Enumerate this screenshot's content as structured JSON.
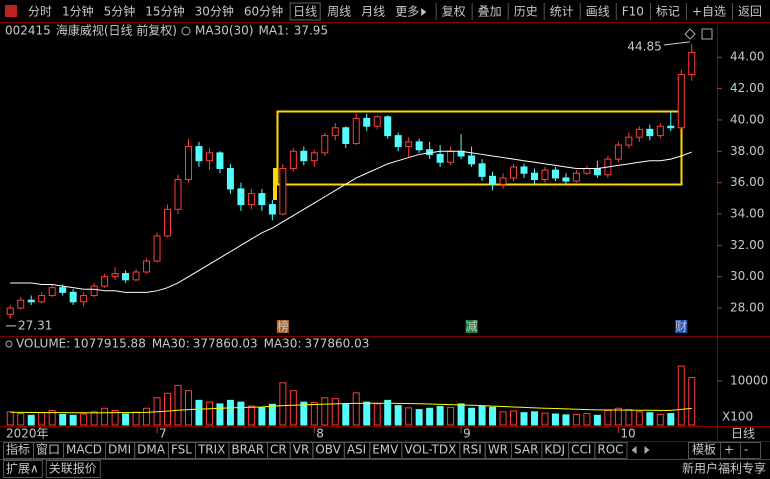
{
  "toolbar": {
    "left": [
      "分时",
      "1分钟",
      "5分钟",
      "15分钟",
      "30分钟",
      "60分钟",
      "日线",
      "周线",
      "月线",
      "更多"
    ],
    "right": [
      "复权",
      "叠加",
      "历史",
      "统计",
      "画线",
      "F10",
      "标记",
      "+自选",
      "返回"
    ]
  },
  "chart_data": {
    "type": "candlestick",
    "code": "002415",
    "name": "海康威视(日线 前复权)",
    "ma_label": "MA30(30)",
    "ma_value_label": "MA1:",
    "categories": [
      "2020年",
      null,
      null,
      null,
      null,
      null,
      null,
      null,
      null,
      null,
      null,
      null,
      null,
      null,
      "7",
      null,
      null,
      null,
      null,
      null,
      null,
      null,
      null,
      null,
      null,
      null,
      null,
      null,
      null,
      "8",
      null,
      null,
      null,
      null,
      null,
      null,
      null,
      null,
      null,
      null,
      null,
      null,
      null,
      "9",
      null,
      null,
      null,
      null,
      null,
      null,
      null,
      null,
      null,
      null,
      null,
      null,
      null,
      null,
      "10",
      null,
      null,
      null,
      null,
      null,
      null,
      null
    ],
    "open": [
      27.6,
      28.0,
      28.5,
      28.4,
      28.8,
      29.3,
      29.0,
      28.4,
      28.8,
      29.4,
      30.0,
      30.2,
      29.8,
      30.3,
      31.0,
      32.6,
      34.3,
      36.2,
      38.3,
      37.4,
      37.9,
      36.9,
      35.6,
      34.6,
      35.3,
      34.6,
      34.0,
      36.9,
      38.0,
      37.4,
      37.9,
      39.0,
      39.5,
      38.5,
      40.1,
      39.6,
      40.2,
      39.0,
      38.3,
      38.6,
      38.1,
      37.8,
      37.3,
      38.0,
      37.7,
      37.2,
      36.4,
      35.9,
      36.3,
      37.0,
      36.6,
      36.2,
      36.8,
      36.3,
      36.1,
      36.6,
      36.9,
      36.5,
      37.5,
      38.4,
      38.9,
      39.4,
      39.0,
      39.6,
      39.5,
      42.9
    ],
    "high": [
      28.2,
      28.7,
      28.8,
      29.0,
      29.5,
      29.5,
      29.2,
      29.0,
      29.6,
      30.2,
      30.6,
      30.4,
      30.5,
      31.2,
      32.8,
      34.6,
      36.5,
      38.8,
      38.6,
      38.2,
      38.0,
      37.2,
      36.0,
      35.6,
      35.6,
      34.9,
      37.2,
      38.2,
      38.3,
      38.1,
      39.2,
      39.8,
      39.6,
      40.4,
      40.4,
      40.3,
      40.3,
      39.2,
      38.9,
      38.8,
      38.6,
      38.4,
      38.3,
      39.1,
      38.3,
      37.5,
      36.7,
      36.6,
      37.2,
      37.2,
      36.9,
      37.0,
      37.0,
      36.6,
      36.8,
      37.1,
      37.4,
      37.7,
      38.6,
      39.2,
      39.6,
      39.7,
      39.8,
      40.6,
      43.2,
      44.85
    ],
    "low": [
      27.31,
      27.9,
      28.2,
      28.3,
      28.7,
      28.8,
      28.2,
      28.1,
      28.7,
      29.3,
      29.8,
      29.6,
      29.7,
      30.2,
      30.9,
      32.5,
      34.0,
      36.0,
      37.0,
      36.8,
      36.6,
      35.3,
      34.2,
      34.3,
      34.2,
      33.6,
      33.9,
      36.7,
      37.1,
      37.0,
      37.7,
      38.7,
      38.2,
      38.4,
      39.3,
      39.4,
      38.8,
      38.0,
      37.6,
      37.9,
      37.5,
      37.0,
      37.1,
      37.5,
      37.0,
      36.1,
      35.5,
      35.6,
      36.1,
      36.3,
      35.9,
      36.0,
      36.1,
      35.9,
      36.0,
      36.5,
      36.3,
      36.3,
      37.3,
      38.2,
      38.6,
      38.7,
      38.8,
      39.3,
      39.4,
      42.5
    ],
    "close": [
      28.0,
      28.5,
      28.4,
      28.8,
      29.3,
      29.0,
      28.4,
      28.8,
      29.4,
      30.0,
      30.2,
      29.8,
      30.3,
      31.0,
      32.6,
      34.3,
      36.2,
      38.3,
      37.4,
      37.9,
      36.9,
      35.6,
      34.6,
      35.3,
      34.6,
      34.0,
      36.9,
      38.0,
      37.4,
      37.9,
      39.0,
      39.5,
      38.5,
      40.1,
      39.6,
      40.2,
      39.0,
      38.3,
      38.6,
      38.1,
      37.8,
      37.3,
      38.0,
      37.7,
      37.2,
      36.4,
      35.9,
      36.3,
      37.0,
      36.6,
      36.2,
      36.8,
      36.3,
      36.1,
      36.6,
      36.9,
      36.5,
      37.5,
      38.4,
      38.9,
      39.4,
      39.0,
      39.6,
      39.5,
      42.9,
      44.3
    ],
    "up_color": "#ff3c3c",
    "down_color": "#54fcfc",
    "ma30": {
      "color": "#ffffff",
      "values": [
        29.6,
        29.6,
        29.6,
        29.5,
        29.5,
        29.4,
        29.3,
        29.2,
        29.2,
        29.1,
        29.1,
        29.0,
        29.0,
        29.0,
        29.1,
        29.3,
        29.6,
        30.0,
        30.4,
        30.8,
        31.2,
        31.6,
        32.0,
        32.4,
        32.8,
        33.1,
        33.5,
        33.9,
        34.3,
        34.7,
        35.1,
        35.5,
        35.9,
        36.3,
        36.6,
        36.9,
        37.2,
        37.4,
        37.6,
        37.8,
        37.9,
        38.0,
        38.0,
        38.0,
        37.9,
        37.8,
        37.7,
        37.6,
        37.5,
        37.4,
        37.3,
        37.2,
        37.1,
        37.0,
        36.9,
        36.9,
        36.9,
        37.0,
        37.1,
        37.2,
        37.3,
        37.4,
        37.4,
        37.5,
        37.7,
        37.95
      ]
    },
    "ylim": [
      26.6,
      45.1
    ],
    "yticks": [
      {
        "value": 28,
        "label": "28.00"
      },
      {
        "value": 30,
        "label": "30.00"
      },
      {
        "value": 32,
        "label": "32.00"
      },
      {
        "value": 34,
        "label": "34.00"
      },
      {
        "value": 36,
        "label": "36.00"
      },
      {
        "value": 38,
        "label": "38.00"
      },
      {
        "value": 40,
        "label": "40.00"
      },
      {
        "value": 42,
        "label": "42.00"
      },
      {
        "value": 44,
        "label": "44.00"
      }
    ],
    "event_labels": [
      null,
      null,
      null,
      null,
      null,
      null,
      null,
      null,
      null,
      null,
      null,
      null,
      null,
      null,
      null,
      null,
      null,
      null,
      null,
      null,
      null,
      null,
      null,
      null,
      null,
      null,
      "榜",
      null,
      null,
      null,
      null,
      null,
      null,
      null,
      null,
      null,
      null,
      null,
      null,
      null,
      null,
      null,
      null,
      null,
      "减",
      null,
      null,
      null,
      null,
      null,
      null,
      null,
      null,
      null,
      null,
      null,
      null,
      null,
      null,
      null,
      null,
      null,
      null,
      null,
      "财",
      null
    ],
    "volume": {
      "title": "VOLUME:",
      "ma_label": "MA30:",
      "ma_color": "#ffff00",
      "values": [
        300000,
        260000,
        220000,
        280000,
        330000,
        240000,
        220000,
        250000,
        300000,
        380000,
        330000,
        250000,
        290000,
        380000,
        620000,
        720000,
        900000,
        780000,
        560000,
        520000,
        480000,
        560000,
        520000,
        430000,
        390000,
        470000,
        960000,
        780000,
        520000,
        510000,
        620000,
        600000,
        480000,
        730000,
        520000,
        480000,
        560000,
        440000,
        390000,
        350000,
        380000,
        420000,
        400000,
        480000,
        380000,
        430000,
        400000,
        300000,
        320000,
        280000,
        300000,
        270000,
        250000,
        230000,
        240000,
        260000,
        220000,
        330000,
        380000,
        350000,
        300000,
        280000,
        240000,
        260000,
        1340000,
        1077915.88
      ],
      "ma_values": [
        290000,
        288000,
        285000,
        283000,
        282000,
        280000,
        278000,
        277000,
        276000,
        278000,
        280000,
        281000,
        283000,
        288000,
        300000,
        315000,
        335000,
        350000,
        360000,
        370000,
        380000,
        390000,
        398000,
        404000,
        410000,
        425000,
        440000,
        450000,
        458000,
        466000,
        475000,
        480000,
        488000,
        492000,
        494000,
        495000,
        494000,
        492000,
        488000,
        484000,
        478000,
        470000,
        462000,
        455000,
        448000,
        440000,
        430000,
        420000,
        410000,
        400000,
        390000,
        382000,
        374000,
        366000,
        358000,
        350000,
        345000,
        342000,
        340000,
        338000,
        336000,
        334000,
        333000,
        333000,
        355000,
        377860.03
      ],
      "ylim": [
        0,
        2000000
      ],
      "yticks": [
        {
          "value": 1000000,
          "label": "10000"
        }
      ],
      "unit_label": "X100"
    },
    "period_label": "日线"
  },
  "tabs": {
    "left": [
      "指标",
      "窗口",
      "MACD",
      "DMI",
      "DMA",
      "FSL",
      "TRIX",
      "BRAR",
      "CR",
      "VR",
      "OBV",
      "ASI",
      "EMV",
      "VOL-TDX",
      "RSI",
      "WR",
      "SAR",
      "KDJ",
      "CCI",
      "ROC"
    ],
    "right": [
      "模板",
      "+",
      "-"
    ]
  },
  "footer": {
    "left": [
      "扩展∧",
      "关联报价"
    ],
    "right": "新用户福利专享"
  }
}
